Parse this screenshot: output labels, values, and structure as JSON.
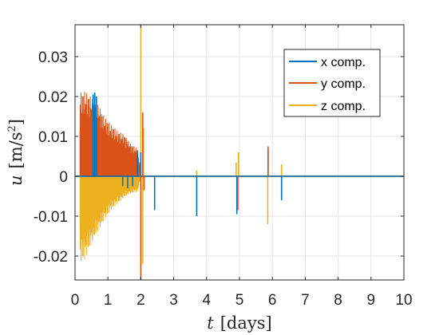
{
  "chart_data": {
    "type": "line",
    "xlabel": {
      "symbol": "t",
      "unit": "[days]"
    },
    "ylabel": {
      "symbol": "u",
      "unit": "[m/s",
      "unit_exp": "2",
      "unit_close": "]"
    },
    "xlim": [
      0,
      10
    ],
    "ylim": [
      -0.026,
      0.038
    ],
    "x_ticks": [
      0,
      1,
      2,
      3,
      4,
      5,
      6,
      7,
      8,
      9,
      10
    ],
    "x_tick_labels": [
      "0",
      "1",
      "2",
      "3",
      "4",
      "5",
      "6",
      "7",
      "8",
      "9",
      "10"
    ],
    "y_ticks": [
      -0.02,
      -0.01,
      0,
      0.01,
      0.02,
      0.03
    ],
    "y_tick_labels": [
      "-0.02",
      "-0.01",
      "0",
      "0.01",
      "0.02",
      "0.03"
    ],
    "grid": true,
    "legend_position": "top-right",
    "series": [
      {
        "name": "x comp.",
        "color": "#0072BD",
        "spikes": [
          {
            "t": 0.55,
            "v": 0.0205
          },
          {
            "t": 0.6,
            "v": 0.021
          },
          {
            "t": 0.65,
            "v": 0.02
          },
          {
            "t": 1.45,
            "v": -0.0025
          },
          {
            "t": 1.6,
            "v": -0.003
          },
          {
            "t": 1.75,
            "v": -0.0025
          },
          {
            "t": 1.9,
            "v": 0.0065
          },
          {
            "t": 2.0,
            "v": 0.006
          },
          {
            "t": 2.42,
            "v": -0.0085
          },
          {
            "t": 3.7,
            "v": -0.01
          },
          {
            "t": 4.92,
            "v": -0.0095
          },
          {
            "t": 5.87,
            "v": 0.0065
          },
          {
            "t": 6.28,
            "v": -0.006
          }
        ]
      },
      {
        "name": "y comp.",
        "color": "#D95319",
        "envelope": [
          {
            "t": 0.15,
            "v": 0.021
          },
          {
            "t": 0.3,
            "v": 0.0215
          },
          {
            "t": 0.5,
            "v": 0.0205
          },
          {
            "t": 0.7,
            "v": 0.019
          },
          {
            "t": 0.9,
            "v": 0.015
          },
          {
            "t": 1.1,
            "v": 0.013
          },
          {
            "t": 1.3,
            "v": 0.0115
          },
          {
            "t": 1.5,
            "v": 0.011
          },
          {
            "t": 1.7,
            "v": 0.0085
          },
          {
            "t": 1.9,
            "v": 0.007
          },
          {
            "t": 2.0,
            "v": 0.0
          }
        ],
        "spikes": [
          {
            "t": 1.97,
            "v": 0.0035
          },
          {
            "t": 2.0,
            "v": -0.026
          },
          {
            "t": 2.06,
            "v": 0.016
          },
          {
            "t": 2.1,
            "v": -0.0035
          },
          {
            "t": 4.95,
            "v": -0.0085
          },
          {
            "t": 5.87,
            "v": 0.0075
          }
        ]
      },
      {
        "name": "z comp.",
        "color": "#EDB120",
        "envelope": [
          {
            "t": 0.15,
            "v": -0.0215
          },
          {
            "t": 0.3,
            "v": -0.021
          },
          {
            "t": 0.5,
            "v": -0.0175
          },
          {
            "t": 0.7,
            "v": -0.0145
          },
          {
            "t": 0.9,
            "v": -0.011
          },
          {
            "t": 1.1,
            "v": -0.0085
          },
          {
            "t": 1.3,
            "v": -0.007
          },
          {
            "t": 1.5,
            "v": -0.0055
          },
          {
            "t": 1.7,
            "v": -0.0045
          },
          {
            "t": 1.9,
            "v": -0.004
          },
          {
            "t": 2.0,
            "v": 0.0
          }
        ],
        "spikes": [
          {
            "t": 2.0,
            "v": 0.038
          },
          {
            "t": 2.0,
            "v": -0.02
          },
          {
            "t": 2.06,
            "v": -0.022
          },
          {
            "t": 2.08,
            "v": 0.012
          },
          {
            "t": 3.7,
            "v": 0.0015
          },
          {
            "t": 4.9,
            "v": 0.0035
          },
          {
            "t": 4.97,
            "v": 0.006
          },
          {
            "t": 5.86,
            "v": -0.012
          },
          {
            "t": 6.28,
            "v": 0.003
          }
        ]
      }
    ]
  }
}
